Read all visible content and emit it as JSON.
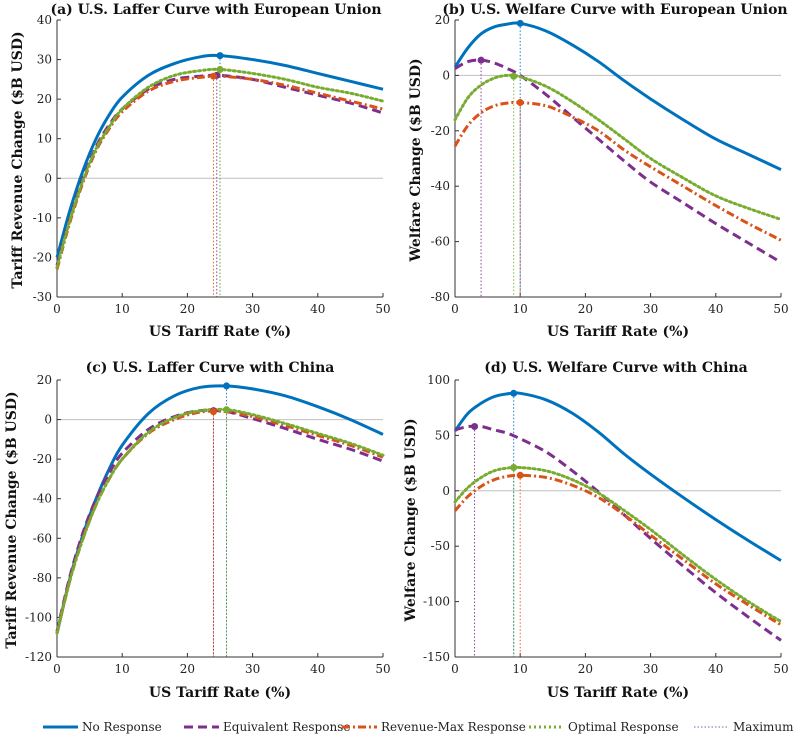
{
  "legend": {
    "items": [
      {
        "label": "No Response",
        "color": "#0072BD",
        "style": "solid"
      },
      {
        "label": "Equivalent Response",
        "color": "#7E2F8E",
        "style": "dashed"
      },
      {
        "label": "Revenue-Max Response",
        "color": "#D95319",
        "style": "dashdot"
      },
      {
        "label": "Optimal Response",
        "color": "#77AC30",
        "style": "dotted"
      },
      {
        "label": "Maximum",
        "color": "#6a6aa8",
        "style": "thin-dotted"
      }
    ]
  },
  "chart_data": [
    {
      "id": "a",
      "type": "line",
      "title": "(a) U.S. Laffer Curve with European Union",
      "xlabel": "US Tariff Rate (%)",
      "ylabel": "Tariff Revenue Change ($B USD)",
      "xlim": [
        0,
        50
      ],
      "ylim": [
        -30,
        40
      ],
      "xticks": [
        0,
        10,
        20,
        30,
        40,
        50
      ],
      "yticks": [
        -30,
        -20,
        -10,
        0,
        10,
        20,
        30,
        40
      ],
      "x": [
        0,
        2,
        4,
        6,
        8,
        10,
        14,
        18,
        22,
        25,
        30,
        35,
        40,
        45,
        50
      ],
      "series": [
        {
          "name": "No Response",
          "values": [
            -20,
            -8,
            2,
            10,
            16,
            20.5,
            26,
            29,
            30.7,
            31,
            30,
            28.5,
            26.5,
            24.5,
            22.5
          ],
          "max": [
            25,
            31
          ]
        },
        {
          "name": "Equivalent Response",
          "values": [
            -22,
            -10,
            0,
            8,
            13.5,
            17.5,
            22.5,
            25,
            25.8,
            26,
            25,
            23,
            21,
            19,
            16.5
          ],
          "max": [
            24.5,
            26
          ]
        },
        {
          "name": "Revenue-Max Response",
          "values": [
            -23,
            -11,
            -1,
            7,
            12.5,
            16.8,
            22,
            24.5,
            25.5,
            25.8,
            25,
            23.5,
            21.5,
            19.5,
            17.5
          ],
          "max": [
            24,
            25.8
          ]
        },
        {
          "name": "Optimal Response",
          "values": [
            -22.5,
            -10.5,
            -0.5,
            7.5,
            13,
            17.5,
            23,
            26,
            27.2,
            27.5,
            26.5,
            25,
            23,
            21.5,
            19.5
          ],
          "max": [
            25,
            27.5
          ]
        }
      ]
    },
    {
      "id": "b",
      "type": "line",
      "title": "(b) U.S. Welfare Curve with European Union",
      "xlabel": "US Tariff Rate (%)",
      "ylabel": "Welfare Change ($B USD)",
      "xlim": [
        0,
        50
      ],
      "ylim": [
        -80,
        20
      ],
      "xticks": [
        0,
        10,
        20,
        30,
        40,
        50
      ],
      "yticks": [
        -80,
        -60,
        -40,
        -20,
        0,
        20
      ],
      "x": [
        0,
        2,
        4,
        6,
        8,
        10,
        14,
        18,
        22,
        26,
        30,
        35,
        40,
        45,
        50
      ],
      "series": [
        {
          "name": "No Response",
          "values": [
            3,
            10,
            15,
            17.5,
            18.5,
            18.8,
            16,
            11,
            5,
            -2,
            -8.5,
            -16,
            -23,
            -28.5,
            -34
          ],
          "max": [
            10,
            18.8
          ]
        },
        {
          "name": "Equivalent Response",
          "values": [
            2.5,
            5,
            5.5,
            4.5,
            2.5,
            0,
            -7,
            -15,
            -23,
            -31,
            -38.5,
            -46,
            -53.5,
            -60.5,
            -67.5
          ],
          "max": [
            4,
            5.5
          ]
        },
        {
          "name": "Revenue-Max Response",
          "values": [
            -25.5,
            -18,
            -13.5,
            -11,
            -10,
            -9.8,
            -11,
            -15,
            -20,
            -27,
            -33,
            -40,
            -47,
            -53.5,
            -59.5
          ],
          "max": [
            10,
            -9.8
          ]
        },
        {
          "name": "Optimal Response",
          "values": [
            -16,
            -8,
            -3.5,
            -1,
            0,
            -0.5,
            -4,
            -9.5,
            -16,
            -23,
            -30,
            -37,
            -43.5,
            -48,
            -52
          ],
          "max": [
            9,
            -0.3
          ]
        }
      ]
    },
    {
      "id": "c",
      "type": "line",
      "title": "(c) U.S. Laffer Curve with China",
      "xlabel": "US Tariff Rate (%)",
      "ylabel": "Tariff Revenue Change ($B USD)",
      "xlim": [
        0,
        50
      ],
      "ylim": [
        -120,
        20
      ],
      "xticks": [
        0,
        10,
        20,
        30,
        40,
        50
      ],
      "yticks": [
        -120,
        -100,
        -80,
        -60,
        -40,
        -20,
        0,
        20
      ],
      "x": [
        0,
        2,
        4,
        6,
        8,
        10,
        14,
        18,
        22,
        26,
        30,
        35,
        40,
        45,
        50
      ],
      "series": [
        {
          "name": "No Response",
          "values": [
            -108,
            -80,
            -58,
            -40,
            -25,
            -13,
            3,
            12,
            16.3,
            17,
            15.5,
            12,
            6.5,
            0,
            -7.5
          ],
          "max": [
            26,
            17
          ]
        },
        {
          "name": "Equivalent Response",
          "values": [
            -107,
            -79,
            -57,
            -40,
            -27,
            -17,
            -5,
            1.5,
            4.5,
            4,
            0.5,
            -4.5,
            -10,
            -15,
            -21
          ],
          "max": [
            24,
            4.5
          ]
        },
        {
          "name": "Revenue-Max Response",
          "values": [
            -108,
            -81,
            -60,
            -43,
            -30,
            -20,
            -7,
            0,
            3.8,
            4,
            1.5,
            -3,
            -8,
            -13,
            -19
          ],
          "max": [
            24,
            4
          ]
        },
        {
          "name": "Optimal Response",
          "values": [
            -108,
            -81,
            -60,
            -43,
            -30,
            -20,
            -6.5,
            1,
            4.5,
            5,
            2.5,
            -2,
            -7,
            -12,
            -18
          ],
          "max": [
            26,
            5
          ]
        }
      ]
    },
    {
      "id": "d",
      "type": "line",
      "title": "(d) U.S. Welfare Curve with China",
      "xlabel": "US Tariff Rate (%)",
      "ylabel": "Welfare Change ($B USD)",
      "xlim": [
        0,
        50
      ],
      "ylim": [
        -150,
        100
      ],
      "xticks": [
        0,
        10,
        20,
        30,
        40,
        50
      ],
      "yticks": [
        -150,
        -100,
        -50,
        0,
        50,
        100
      ],
      "x": [
        0,
        2,
        4,
        6,
        8,
        10,
        14,
        18,
        22,
        26,
        30,
        35,
        40,
        45,
        50
      ],
      "series": [
        {
          "name": "No Response",
          "values": [
            54,
            70,
            79,
            85,
            87.5,
            88,
            82,
            70,
            53,
            33,
            15,
            -6,
            -26,
            -45,
            -63
          ],
          "max": [
            9,
            88
          ]
        },
        {
          "name": "Equivalent Response",
          "values": [
            55,
            58,
            58,
            55,
            52,
            47,
            35,
            18,
            -1,
            -22,
            -43,
            -68,
            -92,
            -114,
            -135
          ],
          "max": [
            3,
            58
          ]
        },
        {
          "name": "Revenue-Max Response",
          "values": [
            -18,
            -5,
            4,
            10,
            13,
            14,
            12,
            5,
            -6,
            -22,
            -40,
            -62,
            -84,
            -103,
            -121
          ],
          "max": [
            10,
            14
          ]
        },
        {
          "name": "Optimal Response",
          "values": [
            -10,
            3,
            12,
            18,
            20.5,
            21,
            18,
            10,
            -2,
            -18,
            -35,
            -58,
            -80,
            -100,
            -118
          ],
          "max": [
            9,
            21
          ]
        }
      ]
    }
  ]
}
